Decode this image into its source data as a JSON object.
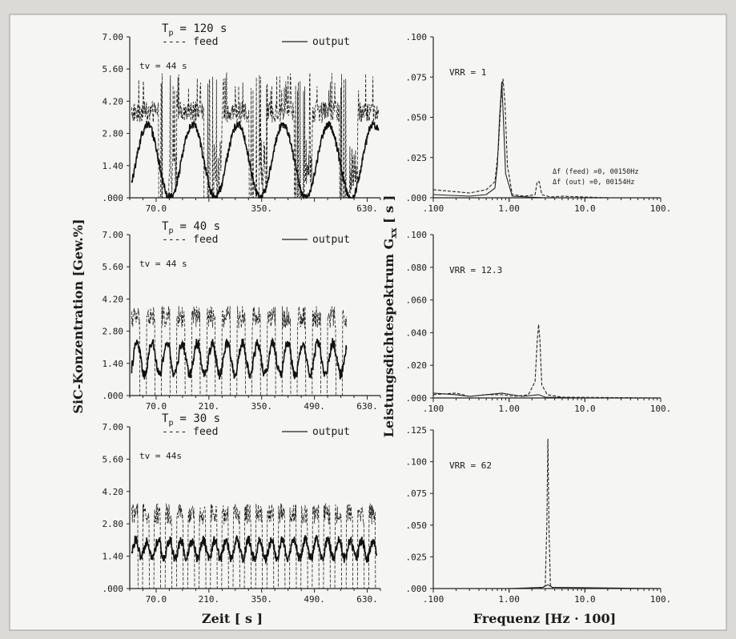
{
  "figure": {
    "ylabel_left": "SiC-Konzentration [Gew.%]",
    "ylabel_right": "Leistungsdichtespektrum G",
    "ylabel_right_sub": "xx",
    "ylabel_right_unit": " [ s ]",
    "xlabel_left": "Zeit [ s ]",
    "xlabel_right": "Frequenz [Hz · 100]"
  },
  "chart_data": [
    {
      "type": "line",
      "panel": "time-1",
      "title_T": "T",
      "title_sub": "p",
      "title_rest": "= 120 s",
      "legend": {
        "feed": "---- feed",
        "output": "output"
      },
      "annotation": "tv = 44 s",
      "xlim": [
        0,
        665
      ],
      "ylim": [
        0,
        7
      ],
      "xticks": [
        "70.0",
        "350.",
        "630."
      ],
      "xtick_values": [
        70,
        350,
        630
      ],
      "yticks": [
        "7.00",
        "5.60",
        "4.20",
        "2.80",
        "1.40",
        ".000"
      ],
      "ytick_values": [
        7,
        5.6,
        4.2,
        2.8,
        1.4,
        0
      ],
      "period": 120,
      "output_range": [
        0,
        3.2
      ],
      "feed_range": [
        0,
        4.2
      ],
      "x_end": 660,
      "series": [
        {
          "name": "feed",
          "style": "dashed"
        },
        {
          "name": "output",
          "style": "solid"
        }
      ]
    },
    {
      "type": "line",
      "panel": "time-2",
      "title_T": "T",
      "title_sub": "p",
      "title_rest": "= 40 s",
      "legend": {
        "feed": "---- feed",
        "output": "output"
      },
      "annotation": "tv = 44 s",
      "xlim": [
        0,
        665
      ],
      "ylim": [
        0,
        7
      ],
      "xticks": [
        "70.0",
        "210.",
        "350.",
        "490.",
        "630."
      ],
      "xtick_values": [
        70,
        210,
        350,
        490,
        630
      ],
      "yticks": [
        "7.00",
        "5.60",
        "4.20",
        "2.80",
        "1.40",
        ".000"
      ],
      "ytick_values": [
        7,
        5.6,
        4.2,
        2.8,
        1.4,
        0
      ],
      "period": 40,
      "output_range": [
        0.9,
        2.3
      ],
      "feed_range": [
        0,
        3.9
      ],
      "x_end": 575,
      "series": [
        {
          "name": "feed",
          "style": "dashed"
        },
        {
          "name": "output",
          "style": "solid"
        }
      ]
    },
    {
      "type": "line",
      "panel": "time-3",
      "title_T": "T",
      "title_sub": "p",
      "title_rest": "= 30 s",
      "legend": {
        "feed": "---- feed",
        "output": "output"
      },
      "annotation": "tv = 44s",
      "xlim": [
        0,
        665
      ],
      "ylim": [
        0,
        7
      ],
      "xticks": [
        "70.0",
        "210.",
        "350.",
        "490.",
        "630."
      ],
      "xtick_values": [
        70,
        210,
        350,
        490,
        630
      ],
      "yticks": [
        "7.00",
        "5.60",
        "4.20",
        "2.80",
        "1.40",
        ".000"
      ],
      "ytick_values": [
        7,
        5.6,
        4.2,
        2.8,
        1.4,
        0
      ],
      "period": 30,
      "output_range": [
        1.3,
        2.1
      ],
      "feed_range": [
        0,
        3.7
      ],
      "x_end": 655,
      "series": [
        {
          "name": "feed",
          "style": "dashed"
        },
        {
          "name": "output",
          "style": "solid"
        }
      ]
    },
    {
      "type": "line",
      "panel": "spec-1",
      "scale": "log-x",
      "annotation": "VRR = 1",
      "note_feed": "Δf (feed) =0, 00150Hz",
      "note_out": "Δf (out)  =0, 00154Hz",
      "xlim": [
        0.1,
        100
      ],
      "ylim": [
        0,
        0.1
      ],
      "xticks": [
        ".100",
        "1.00",
        "10.0",
        "100."
      ],
      "xtick_values": [
        0.1,
        1,
        10,
        100
      ],
      "yticks": [
        ".100",
        ".075",
        ".050",
        ".025",
        ".000"
      ],
      "ytick_values": [
        0.1,
        0.075,
        0.05,
        0.025,
        0
      ],
      "series": [
        {
          "name": "feed",
          "style": "dashed",
          "x": [
            0.1,
            0.3,
            0.5,
            0.65,
            0.72,
            0.78,
            0.83,
            0.88,
            0.95,
            1.1,
            1.6,
            2.2,
            2.35,
            2.5,
            2.7,
            3.5,
            5,
            20,
            100
          ],
          "y": [
            0.005,
            0.003,
            0.005,
            0.01,
            0.03,
            0.06,
            0.074,
            0.06,
            0.02,
            0.002,
            0.001,
            0.002,
            0.01,
            0.01,
            0.002,
            0.0005,
            0.001,
            0,
            0
          ]
        },
        {
          "name": "output",
          "style": "solid",
          "x": [
            0.1,
            0.3,
            0.5,
            0.65,
            0.7,
            0.75,
            0.8,
            0.84,
            0.9,
            1.1,
            3,
            100
          ],
          "y": [
            0.002,
            0.001,
            0.002,
            0.006,
            0.02,
            0.05,
            0.072,
            0.05,
            0.015,
            0.001,
            0,
            0
          ]
        }
      ]
    },
    {
      "type": "line",
      "panel": "spec-2",
      "scale": "log-x",
      "annotation": "VRR = 12.3",
      "xlim": [
        0.1,
        100
      ],
      "ylim": [
        0,
        0.1
      ],
      "xticks": [
        ".100",
        "1.00",
        "10.0",
        "100."
      ],
      "xtick_values": [
        0.1,
        1,
        10,
        100
      ],
      "yticks": [
        ".100",
        ".080",
        ".060",
        ".040",
        ".020",
        ".000"
      ],
      "ytick_values": [
        0.1,
        0.08,
        0.06,
        0.04,
        0.02,
        0
      ],
      "series": [
        {
          "name": "feed",
          "style": "dashed",
          "x": [
            0.1,
            0.2,
            0.3,
            0.5,
            0.8,
            1.2,
            1.8,
            2.2,
            2.35,
            2.45,
            2.55,
            2.7,
            3.2,
            5,
            100
          ],
          "y": [
            0.002,
            0.003,
            0.001,
            0.002,
            0.002,
            0.001,
            0.002,
            0.01,
            0.035,
            0.045,
            0.035,
            0.008,
            0.002,
            0.0005,
            0
          ]
        },
        {
          "name": "output",
          "style": "solid",
          "x": [
            0.1,
            0.2,
            0.3,
            0.5,
            0.8,
            1.5,
            2.45,
            3,
            10,
            100
          ],
          "y": [
            0.003,
            0.002,
            0.001,
            0.002,
            0.003,
            0.001,
            0.002,
            0.0005,
            0,
            0
          ]
        }
      ]
    },
    {
      "type": "line",
      "panel": "spec-3",
      "scale": "log-x",
      "annotation": "VRR = 62",
      "xlim": [
        0.1,
        100
      ],
      "ylim": [
        0,
        0.125
      ],
      "xticks": [
        ".100",
        "1.00",
        "10.0",
        "100."
      ],
      "xtick_values": [
        0.1,
        1,
        10,
        100
      ],
      "yticks": [
        ".125",
        ".100",
        ".075",
        ".050",
        ".025",
        ".000"
      ],
      "ytick_values": [
        0.125,
        0.1,
        0.075,
        0.05,
        0.025,
        0
      ],
      "series": [
        {
          "name": "feed",
          "style": "dashed",
          "x": [
            0.1,
            2.5,
            3.0,
            3.15,
            3.25,
            3.35,
            3.5,
            3.8,
            100
          ],
          "y": [
            0,
            0,
            0.002,
            0.05,
            0.118,
            0.05,
            0.003,
            0,
            0
          ]
        },
        {
          "name": "output",
          "style": "solid",
          "x": [
            0.1,
            1,
            2.8,
            3.25,
            3.7,
            100
          ],
          "y": [
            0,
            0,
            0.001,
            0.003,
            0.001,
            0
          ]
        }
      ]
    }
  ]
}
